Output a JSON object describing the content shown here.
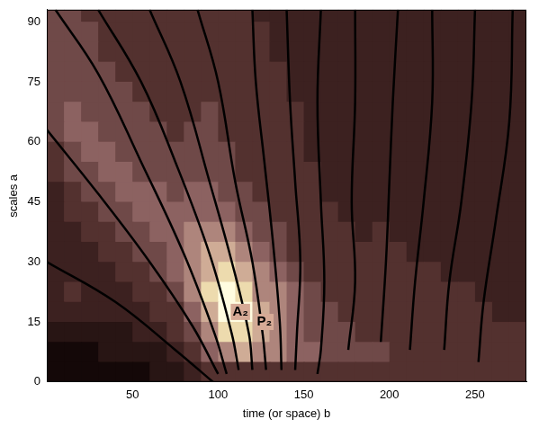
{
  "chart_data": {
    "type": "heatmap",
    "x_label": "time (or space) b",
    "y_label": "scales a",
    "xlim": [
      0,
      280
    ],
    "ylim": [
      0,
      93
    ],
    "xticks": [
      50,
      100,
      150,
      200,
      250
    ],
    "yticks": [
      0,
      15,
      30,
      45,
      60,
      75,
      90
    ],
    "grid": false,
    "x_bins": [
      0,
      10,
      20,
      30,
      40,
      50,
      60,
      70,
      80,
      90,
      100,
      110,
      120,
      130,
      140,
      150,
      160,
      170,
      180,
      190,
      200,
      210,
      220,
      230,
      240,
      250,
      260,
      270,
      280
    ],
    "y_bins": [
      0,
      5,
      10,
      15,
      20,
      25,
      30,
      35,
      40,
      45,
      50,
      55,
      60,
      65,
      70,
      75,
      80,
      85,
      90,
      93
    ],
    "cell_range": [
      0,
      9
    ],
    "cells": [
      [
        4,
        4,
        3,
        3,
        3,
        3,
        3,
        3,
        3,
        3,
        3,
        3,
        2,
        2,
        2,
        2,
        2,
        2,
        2,
        2,
        2,
        2,
        2,
        2,
        2,
        2,
        2,
        2
      ],
      [
        4,
        4,
        4,
        3,
        3,
        3,
        3,
        3,
        3,
        3,
        3,
        3,
        3,
        2,
        2,
        2,
        2,
        2,
        2,
        2,
        2,
        2,
        2,
        2,
        2,
        2,
        2,
        2
      ],
      [
        4,
        4,
        4,
        3,
        3,
        3,
        3,
        3,
        3,
        3,
        3,
        3,
        3,
        2,
        2,
        2,
        2,
        2,
        2,
        2,
        2,
        2,
        2,
        2,
        2,
        2,
        2,
        2
      ],
      [
        4,
        4,
        4,
        4,
        3,
        3,
        3,
        3,
        3,
        3,
        3,
        3,
        3,
        3,
        2,
        2,
        2,
        2,
        2,
        2,
        2,
        2,
        2,
        2,
        2,
        2,
        2,
        2
      ],
      [
        4,
        4,
        4,
        4,
        4,
        3,
        3,
        3,
        3,
        3,
        3,
        3,
        3,
        3,
        2,
        2,
        2,
        2,
        2,
        2,
        2,
        2,
        2,
        2,
        2,
        2,
        2,
        2
      ],
      [
        4,
        5,
        4,
        4,
        4,
        4,
        3,
        3,
        3,
        4,
        3,
        3,
        3,
        3,
        3,
        2,
        2,
        2,
        2,
        2,
        2,
        2,
        2,
        2,
        2,
        2,
        2,
        2
      ],
      [
        4,
        5,
        5,
        4,
        4,
        4,
        4,
        3,
        4,
        4,
        3,
        3,
        3,
        3,
        3,
        2,
        2,
        2,
        2,
        2,
        2,
        2,
        2,
        2,
        2,
        2,
        2,
        2
      ],
      [
        3,
        4,
        5,
        5,
        4,
        4,
        4,
        4,
        4,
        4,
        4,
        3,
        3,
        3,
        3,
        2,
        2,
        2,
        2,
        2,
        2,
        2,
        2,
        2,
        2,
        2,
        2,
        2
      ],
      [
        3,
        4,
        4,
        5,
        5,
        4,
        4,
        4,
        4,
        4,
        4,
        3,
        3,
        3,
        3,
        3,
        2,
        2,
        2,
        2,
        2,
        2,
        2,
        2,
        2,
        2,
        2,
        2
      ],
      [
        2,
        3,
        4,
        4,
        5,
        5,
        5,
        4,
        5,
        5,
        4,
        4,
        3,
        3,
        3,
        3,
        2,
        2,
        2,
        2,
        2,
        2,
        2,
        2,
        2,
        2,
        2,
        2
      ],
      [
        2,
        3,
        3,
        4,
        4,
        5,
        5,
        5,
        5,
        5,
        5,
        4,
        4,
        3,
        3,
        3,
        3,
        2,
        2,
        2,
        2,
        2,
        2,
        2,
        2,
        2,
        2,
        2
      ],
      [
        2,
        2,
        3,
        3,
        4,
        4,
        5,
        5,
        6,
        6,
        6,
        5,
        4,
        4,
        3,
        3,
        3,
        3,
        2,
        3,
        2,
        2,
        2,
        2,
        2,
        2,
        2,
        2
      ],
      [
        2,
        2,
        2,
        3,
        3,
        4,
        4,
        5,
        6,
        7,
        7,
        6,
        5,
        4,
        3,
        3,
        3,
        3,
        3,
        3,
        3,
        2,
        2,
        2,
        2,
        2,
        2,
        2
      ],
      [
        2,
        2,
        2,
        2,
        3,
        3,
        4,
        5,
        6,
        7,
        8,
        7,
        6,
        5,
        4,
        3,
        3,
        3,
        3,
        3,
        3,
        3,
        3,
        2,
        2,
        2,
        2,
        2
      ],
      [
        2,
        3,
        2,
        2,
        2,
        3,
        3,
        4,
        6,
        8,
        9,
        8,
        6,
        6,
        5,
        4,
        3,
        3,
        3,
        3,
        3,
        3,
        3,
        3,
        3,
        2,
        2,
        2
      ],
      [
        2,
        2,
        2,
        2,
        2,
        2,
        3,
        3,
        5,
        7,
        9,
        9,
        7,
        6,
        5,
        4,
        4,
        3,
        3,
        3,
        3,
        3,
        3,
        3,
        3,
        3,
        2,
        2
      ],
      [
        1,
        1,
        1,
        1,
        1,
        2,
        2,
        3,
        4,
        6,
        8,
        8,
        7,
        6,
        5,
        4,
        4,
        4,
        3,
        3,
        3,
        3,
        3,
        3,
        3,
        3,
        3,
        3
      ],
      [
        0,
        0,
        0,
        1,
        1,
        1,
        1,
        2,
        3,
        5,
        6,
        7,
        6,
        6,
        5,
        5,
        4,
        4,
        4,
        4,
        3,
        3,
        3,
        3,
        3,
        3,
        3,
        3
      ],
      [
        0,
        0,
        0,
        0,
        0,
        0,
        1,
        1,
        2,
        3,
        3,
        3,
        3,
        3,
        3,
        3,
        3,
        3,
        3,
        3,
        3,
        3,
        3,
        3,
        3,
        3,
        3,
        3
      ]
    ],
    "series": [
      {
        "color": "#000000",
        "x": [
          0,
          40,
          75,
          97
        ],
        "values": [
          30,
          20,
          8,
          0
        ]
      },
      {
        "color": "#000000",
        "x": [
          0,
          30,
          60,
          85,
          100
        ],
        "values": [
          63,
          47,
          30,
          14,
          2
        ]
      },
      {
        "color": "#000000",
        "x": [
          5,
          30,
          55,
          80,
          98,
          105
        ],
        "values": [
          93,
          77,
          55,
          32,
          12,
          2
        ]
      },
      {
        "color": "#000000",
        "x": [
          30,
          55,
          75,
          95,
          108,
          112
        ],
        "values": [
          93,
          75,
          55,
          32,
          12,
          3
        ]
      },
      {
        "color": "#000000",
        "x": [
          60,
          78,
          95,
          108,
          118,
          120
        ],
        "values": [
          93,
          75,
          50,
          30,
          12,
          3
        ]
      },
      {
        "color": "#000000",
        "x": [
          88,
          100,
          110,
          120,
          126,
          128
        ],
        "values": [
          93,
          75,
          50,
          30,
          12,
          3
        ]
      },
      {
        "color": "#000000",
        "x": [
          120,
          122,
          127,
          132,
          136,
          137
        ],
        "values": [
          93,
          75,
          55,
          35,
          15,
          3
        ]
      },
      {
        "color": "#000000",
        "x": [
          140,
          142,
          145,
          148,
          146,
          145
        ],
        "values": [
          93,
          70,
          50,
          30,
          12,
          3
        ]
      },
      {
        "color": "#000000",
        "x": [
          160,
          158,
          160,
          162,
          160,
          158
        ],
        "values": [
          93,
          70,
          45,
          25,
          8,
          2
        ]
      },
      {
        "color": "#000000",
        "x": [
          180,
          180,
          178,
          180,
          176
        ],
        "values": [
          93,
          70,
          45,
          25,
          8
        ]
      },
      {
        "color": "#000000",
        "x": [
          205,
          202,
          200,
          198,
          195
        ],
        "values": [
          93,
          70,
          50,
          30,
          10
        ]
      },
      {
        "color": "#000000",
        "x": [
          225,
          225,
          220,
          215,
          212
        ],
        "values": [
          93,
          70,
          45,
          25,
          8
        ]
      },
      {
        "color": "#000000",
        "x": [
          250,
          248,
          242,
          235,
          232
        ],
        "values": [
          93,
          70,
          45,
          25,
          8
        ]
      },
      {
        "color": "#000000",
        "x": [
          272,
          270,
          262,
          255,
          252
        ],
        "values": [
          93,
          65,
          40,
          20,
          5
        ]
      }
    ],
    "annotations": [
      {
        "text": "A₂",
        "x": 113,
        "y": 17.5
      },
      {
        "text": "P₂",
        "x": 127,
        "y": 15
      }
    ]
  }
}
